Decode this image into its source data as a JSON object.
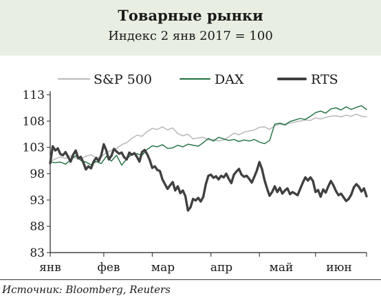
{
  "header": {
    "title": "Товарные рынки",
    "subtitle": "Индекс 2 янв 2017 = 100"
  },
  "source": "Источник: Bloomberg, Reuters",
  "colors": {
    "header_bg": "#e8eee2",
    "sp500": "#bbbbbb",
    "dax": "#1b6e3c",
    "rts": "#404040"
  },
  "chart_data": {
    "type": "line",
    "title": "Товарные рынки",
    "subtitle": "Индекс 2 янв 2017 = 100",
    "xlabel": "",
    "ylabel": "",
    "x_tick_labels": [
      "янв",
      "фев",
      "мар",
      "апр",
      "май",
      "июн"
    ],
    "y_ticks": [
      83,
      88,
      93,
      98,
      103,
      108,
      113
    ],
    "ylim": [
      83,
      113
    ],
    "xlim": [
      0,
      124
    ],
    "legend_position": "top",
    "grid": false,
    "x_unit": "trading days since 2 Jan 2017",
    "series": [
      {
        "name": "S&P 500",
        "color": "#bbbbbb",
        "points": [
          [
            0,
            100.3
          ],
          [
            2,
            100.8
          ],
          [
            4,
            101.2
          ],
          [
            6,
            100.9
          ],
          [
            8,
            101.4
          ],
          [
            10,
            101.0
          ],
          [
            12,
            100.8
          ],
          [
            14,
            101.3
          ],
          [
            16,
            101.6
          ],
          [
            18,
            101.0
          ],
          [
            20,
            101.2
          ],
          [
            22,
            102.0
          ],
          [
            24,
            102.4
          ],
          [
            26,
            102.8
          ],
          [
            28,
            103.5
          ],
          [
            30,
            103.9
          ],
          [
            32,
            104.7
          ],
          [
            34,
            105.3
          ],
          [
            36,
            105.1
          ],
          [
            38,
            106.0
          ],
          [
            40,
            106.6
          ],
          [
            42,
            106.4
          ],
          [
            44,
            106.9
          ],
          [
            46,
            106.3
          ],
          [
            48,
            106.7
          ],
          [
            50,
            105.6
          ],
          [
            52,
            105.2
          ],
          [
            54,
            105.5
          ],
          [
            56,
            104.6
          ],
          [
            58,
            104.8
          ],
          [
            60,
            104.9
          ],
          [
            62,
            104.4
          ],
          [
            64,
            104.5
          ],
          [
            66,
            104.2
          ],
          [
            68,
            104.4
          ],
          [
            70,
            105.0
          ],
          [
            72,
            105.7
          ],
          [
            74,
            105.4
          ],
          [
            76,
            105.9
          ],
          [
            78,
            106.1
          ],
          [
            80,
            106.3
          ],
          [
            82,
            106.8
          ],
          [
            84,
            106.9
          ],
          [
            86,
            106.4
          ],
          [
            88,
            107.1
          ],
          [
            90,
            107.4
          ],
          [
            92,
            107.2
          ],
          [
            94,
            107.6
          ],
          [
            96,
            107.8
          ],
          [
            98,
            108.0
          ],
          [
            100,
            108.2
          ],
          [
            102,
            108.1
          ],
          [
            104,
            108.6
          ],
          [
            106,
            108.4
          ],
          [
            108,
            108.7
          ],
          [
            110,
            108.9
          ],
          [
            112,
            109.0
          ],
          [
            114,
            108.8
          ],
          [
            116,
            109.1
          ],
          [
            118,
            108.9
          ],
          [
            120,
            109.3
          ],
          [
            122,
            108.9
          ],
          [
            124,
            108.8
          ]
        ]
      },
      {
        "name": "DAX",
        "color": "#1b6e3c",
        "points": [
          [
            0,
            100.2
          ],
          [
            2,
            100.1
          ],
          [
            4,
            100.2
          ],
          [
            6,
            99.8
          ],
          [
            8,
            100.6
          ],
          [
            10,
            101.4
          ],
          [
            12,
            100.5
          ],
          [
            14,
            100.2
          ],
          [
            16,
            99.7
          ],
          [
            18,
            100.3
          ],
          [
            20,
            99.9
          ],
          [
            22,
            101.3
          ],
          [
            24,
            100.4
          ],
          [
            26,
            101.5
          ],
          [
            28,
            99.6
          ],
          [
            30,
            100.8
          ],
          [
            32,
            101.7
          ],
          [
            34,
            101.8
          ],
          [
            36,
            101.5
          ],
          [
            38,
            102.6
          ],
          [
            40,
            103.3
          ],
          [
            42,
            103.1
          ],
          [
            44,
            103.5
          ],
          [
            46,
            102.8
          ],
          [
            48,
            102.9
          ],
          [
            50,
            103.4
          ],
          [
            52,
            103.1
          ],
          [
            54,
            103.6
          ],
          [
            56,
            103.4
          ],
          [
            58,
            103.2
          ],
          [
            60,
            103.9
          ],
          [
            62,
            104.7
          ],
          [
            64,
            104.2
          ],
          [
            66,
            104.9
          ],
          [
            68,
            104.6
          ],
          [
            70,
            104.3
          ],
          [
            72,
            104.5
          ],
          [
            74,
            104.1
          ],
          [
            76,
            104.4
          ],
          [
            78,
            104.2
          ],
          [
            80,
            104.5
          ],
          [
            82,
            104.0
          ],
          [
            84,
            103.7
          ],
          [
            86,
            104.3
          ],
          [
            88,
            107.4
          ],
          [
            90,
            107.6
          ],
          [
            92,
            107.3
          ],
          [
            94,
            107.9
          ],
          [
            96,
            108.2
          ],
          [
            98,
            108.5
          ],
          [
            100,
            108.3
          ],
          [
            102,
            108.9
          ],
          [
            104,
            109.6
          ],
          [
            106,
            109.9
          ],
          [
            108,
            109.5
          ],
          [
            110,
            110.3
          ],
          [
            112,
            110.5
          ],
          [
            114,
            110.1
          ],
          [
            116,
            110.7
          ],
          [
            118,
            110.2
          ],
          [
            120,
            110.6
          ],
          [
            122,
            110.9
          ],
          [
            124,
            110.2
          ]
        ]
      },
      {
        "name": "RTS",
        "color": "#404040",
        "points": [
          [
            0,
            100.0
          ],
          [
            1,
            103.2
          ],
          [
            2,
            102.4
          ],
          [
            3,
            102.8
          ],
          [
            4,
            101.7
          ],
          [
            5,
            101.5
          ],
          [
            6,
            102.1
          ],
          [
            7,
            101.2
          ],
          [
            8,
            100.3
          ],
          [
            9,
            101.6
          ],
          [
            10,
            102.4
          ],
          [
            11,
            100.9
          ],
          [
            12,
            101.2
          ],
          [
            13,
            100.1
          ],
          [
            14,
            98.8
          ],
          [
            15,
            99.4
          ],
          [
            16,
            99.0
          ],
          [
            17,
            100.3
          ],
          [
            18,
            101.0
          ],
          [
            19,
            100.4
          ],
          [
            20,
            101.5
          ],
          [
            21,
            103.6
          ],
          [
            22,
            102.4
          ],
          [
            23,
            100.7
          ],
          [
            24,
            101.4
          ],
          [
            25,
            102.7
          ],
          [
            26,
            102.2
          ],
          [
            27,
            101.8
          ],
          [
            28,
            102.0
          ],
          [
            29,
            101.1
          ],
          [
            30,
            100.7
          ],
          [
            31,
            102.0
          ],
          [
            32,
            101.6
          ],
          [
            33,
            101.9
          ],
          [
            34,
            101.2
          ],
          [
            35,
            100.3
          ],
          [
            36,
            102.1
          ],
          [
            37,
            102.5
          ],
          [
            38,
            101.7
          ],
          [
            39,
            100.6
          ],
          [
            40,
            99.1
          ],
          [
            41,
            99.4
          ],
          [
            42,
            98.7
          ],
          [
            43,
            98.5
          ],
          [
            44,
            96.9
          ],
          [
            45,
            96.0
          ],
          [
            46,
            95.1
          ],
          [
            47,
            95.8
          ],
          [
            48,
            96.4
          ],
          [
            49,
            94.8
          ],
          [
            50,
            95.6
          ],
          [
            51,
            94.3
          ],
          [
            52,
            94.8
          ],
          [
            53,
            93.7
          ],
          [
            54,
            91.0
          ],
          [
            55,
            91.6
          ],
          [
            56,
            93.2
          ],
          [
            57,
            92.9
          ],
          [
            58,
            93.4
          ],
          [
            59,
            92.7
          ],
          [
            60,
            93.6
          ],
          [
            61,
            96.0
          ],
          [
            62,
            97.6
          ],
          [
            63,
            97.8
          ],
          [
            64,
            97.2
          ],
          [
            65,
            97.5
          ],
          [
            66,
            96.9
          ],
          [
            67,
            97.6
          ],
          [
            68,
            97.3
          ],
          [
            69,
            98.0
          ],
          [
            70,
            97.0
          ],
          [
            71,
            96.2
          ],
          [
            72,
            97.8
          ],
          [
            73,
            98.4
          ],
          [
            74,
            98.9
          ],
          [
            75,
            97.8
          ],
          [
            76,
            97.4
          ],
          [
            77,
            97.6
          ],
          [
            78,
            97.0
          ],
          [
            79,
            96.3
          ],
          [
            80,
            97.4
          ],
          [
            81,
            98.6
          ],
          [
            82,
            100.2
          ],
          [
            83,
            98.9
          ],
          [
            84,
            96.8
          ],
          [
            85,
            95.2
          ],
          [
            86,
            93.8
          ],
          [
            87,
            94.5
          ],
          [
            88,
            95.6
          ],
          [
            89,
            94.5
          ],
          [
            90,
            95.3
          ],
          [
            91,
            94.2
          ],
          [
            92,
            94.8
          ],
          [
            93,
            95.2
          ],
          [
            94,
            94.1
          ],
          [
            95,
            94.5
          ],
          [
            96,
            94.2
          ],
          [
            97,
            93.9
          ],
          [
            98,
            95.1
          ],
          [
            99,
            96.3
          ],
          [
            100,
            97.3
          ],
          [
            101,
            96.7
          ],
          [
            102,
            97.3
          ],
          [
            103,
            96.6
          ],
          [
            104,
            94.5
          ],
          [
            105,
            94.9
          ],
          [
            106,
            93.6
          ],
          [
            107,
            95.0
          ],
          [
            108,
            94.4
          ],
          [
            109,
            95.6
          ],
          [
            110,
            96.6
          ],
          [
            111,
            95.8
          ],
          [
            112,
            94.7
          ],
          [
            113,
            93.9
          ],
          [
            114,
            94.2
          ],
          [
            115,
            93.5
          ],
          [
            116,
            92.8
          ],
          [
            117,
            93.2
          ],
          [
            118,
            94.0
          ],
          [
            119,
            95.4
          ],
          [
            120,
            96.0
          ],
          [
            121,
            95.5
          ],
          [
            122,
            94.6
          ],
          [
            123,
            95.2
          ],
          [
            124,
            93.7
          ]
        ]
      }
    ]
  }
}
